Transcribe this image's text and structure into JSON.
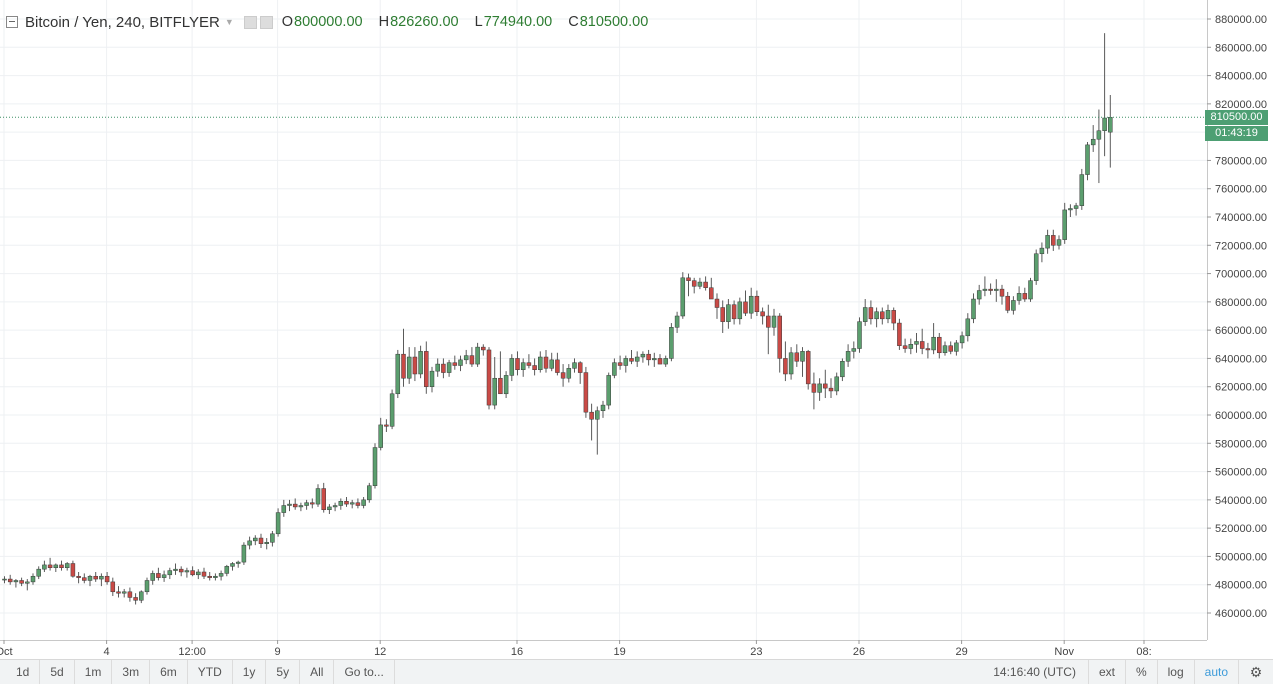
{
  "legend": {
    "symbol": "Bitcoin / Yen, 240, BITFLYER",
    "open_label": "O",
    "open": "800000.00",
    "high_label": "H",
    "high": "826260.00",
    "low_label": "L",
    "low": "774940.00",
    "close_label": "C",
    "close": "810500.00"
  },
  "last_price_tag": "810500.00",
  "countdown_tag": "01:43:19",
  "colors": {
    "up": "#5b9e6e",
    "down": "#c94a46",
    "wick": "#5a5a5a",
    "grid": "#eef0f3",
    "last_line": "#3f8f66"
  },
  "toolbar": {
    "ranges": [
      "1d",
      "5d",
      "1m",
      "3m",
      "6m",
      "YTD",
      "1y",
      "5y",
      "All"
    ],
    "goto": "Go to...",
    "clock": "14:16:40 (UTC)",
    "ext": "ext",
    "percent": "%",
    "log": "log",
    "auto": "auto"
  },
  "chart_data": {
    "type": "candlestick",
    "title": "Bitcoin / Yen, 240, BITFLYER",
    "y_axis_ticks": [
      460000,
      480000,
      500000,
      520000,
      540000,
      560000,
      580000,
      600000,
      620000,
      640000,
      660000,
      680000,
      700000,
      720000,
      740000,
      760000,
      780000,
      800000,
      820000,
      840000,
      860000,
      880000
    ],
    "y_tick_labels": [
      "460000.00",
      "480000.00",
      "500000.00",
      "520000.00",
      "540000.00",
      "560000.00",
      "580000.00",
      "600000.00",
      "620000.00",
      "640000.00",
      "660000.00",
      "680000.00",
      "700000.00",
      "720000.00",
      "740000.00",
      "760000.00",
      "780000.00",
      "800000.00",
      "820000.00",
      "840000.00",
      "860000.00",
      "880000.00"
    ],
    "ylim": [
      446000,
      893000
    ],
    "x_tick_labels": [
      {
        "label": "Oct",
        "bar": 0
      },
      {
        "label": "4",
        "bar": 18
      },
      {
        "label": "12:00",
        "bar": 33
      },
      {
        "label": "9",
        "bar": 48
      },
      {
        "label": "12",
        "bar": 66
      },
      {
        "label": "16",
        "bar": 90
      },
      {
        "label": "19",
        "bar": 108
      },
      {
        "label": "23",
        "bar": 132
      },
      {
        "label": "26",
        "bar": 150
      },
      {
        "label": "29",
        "bar": 168
      },
      {
        "label": "Nov",
        "bar": 186
      },
      {
        "label": "08:",
        "bar": 200
      }
    ],
    "candles_ohlc": [
      [
        484000,
        486000,
        481000,
        484000
      ],
      [
        484000,
        487000,
        480000,
        482000
      ],
      [
        482000,
        484000,
        478000,
        483000
      ],
      [
        483000,
        485000,
        479000,
        481000
      ],
      [
        481000,
        484000,
        476000,
        482000
      ],
      [
        482000,
        488000,
        480000,
        486000
      ],
      [
        486000,
        493000,
        484000,
        491000
      ],
      [
        491000,
        497000,
        489000,
        494000
      ],
      [
        494000,
        499000,
        490000,
        492000
      ],
      [
        492000,
        495000,
        489000,
        494000
      ],
      [
        494000,
        497000,
        490000,
        492000
      ],
      [
        492000,
        496000,
        490000,
        495000
      ],
      [
        495000,
        497000,
        485000,
        486000
      ],
      [
        486000,
        489000,
        481000,
        485000
      ],
      [
        485000,
        488000,
        481000,
        483000
      ],
      [
        483000,
        487000,
        479000,
        486000
      ],
      [
        486000,
        489000,
        482000,
        484000
      ],
      [
        484000,
        488000,
        479000,
        486000
      ],
      [
        486000,
        489000,
        480000,
        482000
      ],
      [
        482000,
        485000,
        472000,
        475000
      ],
      [
        475000,
        479000,
        471000,
        474000
      ],
      [
        474000,
        477000,
        471000,
        475000
      ],
      [
        475000,
        478000,
        468000,
        471000
      ],
      [
        471000,
        474000,
        466000,
        469000
      ],
      [
        469000,
        476000,
        467000,
        475000
      ],
      [
        475000,
        485000,
        473000,
        483000
      ],
      [
        483000,
        490000,
        480000,
        488000
      ],
      [
        488000,
        492000,
        483000,
        485000
      ],
      [
        485000,
        490000,
        482000,
        487000
      ],
      [
        487000,
        492000,
        484000,
        490000
      ],
      [
        490000,
        495000,
        487000,
        491000
      ],
      [
        491000,
        493000,
        486000,
        489000
      ],
      [
        489000,
        492000,
        485000,
        490000
      ],
      [
        490000,
        493000,
        486000,
        487000
      ],
      [
        487000,
        491000,
        484000,
        489000
      ],
      [
        489000,
        492000,
        484000,
        486000
      ],
      [
        486000,
        489000,
        483000,
        485000
      ],
      [
        485000,
        488000,
        483000,
        486000
      ],
      [
        486000,
        490000,
        483000,
        488000
      ],
      [
        488000,
        494000,
        486000,
        493000
      ],
      [
        493000,
        496000,
        490000,
        495000
      ],
      [
        495000,
        497000,
        492000,
        496000
      ],
      [
        496000,
        510000,
        494000,
        508000
      ],
      [
        508000,
        514000,
        505000,
        511000
      ],
      [
        511000,
        515000,
        508000,
        513000
      ],
      [
        513000,
        516000,
        506000,
        509000
      ],
      [
        509000,
        513000,
        505000,
        510000
      ],
      [
        510000,
        518000,
        507000,
        516000
      ],
      [
        516000,
        534000,
        514000,
        531000
      ],
      [
        531000,
        540000,
        528000,
        536000
      ],
      [
        536000,
        540000,
        532000,
        537000
      ],
      [
        537000,
        541000,
        533000,
        535000
      ],
      [
        535000,
        538000,
        532000,
        536000
      ],
      [
        536000,
        540000,
        533000,
        538000
      ],
      [
        538000,
        541000,
        534000,
        537000
      ],
      [
        537000,
        551000,
        535000,
        548000
      ],
      [
        548000,
        552000,
        531000,
        533000
      ],
      [
        533000,
        537000,
        530000,
        535000
      ],
      [
        535000,
        538000,
        532000,
        536000
      ],
      [
        536000,
        541000,
        533000,
        539000
      ],
      [
        539000,
        542000,
        535000,
        537000
      ],
      [
        537000,
        540000,
        534000,
        538000
      ],
      [
        538000,
        541000,
        534000,
        536000
      ],
      [
        536000,
        542000,
        534000,
        540000
      ],
      [
        540000,
        552000,
        538000,
        550000
      ],
      [
        550000,
        580000,
        548000,
        577000
      ],
      [
        577000,
        598000,
        575000,
        593000
      ],
      [
        593000,
        597000,
        588000,
        592000
      ],
      [
        592000,
        618000,
        590000,
        615000
      ],
      [
        615000,
        646000,
        612000,
        643000
      ],
      [
        643000,
        661000,
        620000,
        626000
      ],
      [
        626000,
        648000,
        622000,
        641000
      ],
      [
        641000,
        648000,
        624000,
        629000
      ],
      [
        629000,
        649000,
        626000,
        645000
      ],
      [
        645000,
        652000,
        615000,
        620000
      ],
      [
        620000,
        634000,
        616000,
        631000
      ],
      [
        631000,
        640000,
        627000,
        636000
      ],
      [
        636000,
        640000,
        626000,
        630000
      ],
      [
        630000,
        639000,
        627000,
        637000
      ],
      [
        637000,
        642000,
        632000,
        635000
      ],
      [
        635000,
        642000,
        631000,
        639000
      ],
      [
        639000,
        646000,
        636000,
        642000
      ],
      [
        642000,
        648000,
        634000,
        636000
      ],
      [
        636000,
        651000,
        634000,
        648000
      ],
      [
        648000,
        650000,
        642000,
        646000
      ],
      [
        646000,
        648000,
        604000,
        607000
      ],
      [
        607000,
        641000,
        604000,
        626000
      ],
      [
        626000,
        645000,
        618000,
        615000
      ],
      [
        615000,
        631000,
        612000,
        628000
      ],
      [
        628000,
        643000,
        624000,
        640000
      ],
      [
        640000,
        645000,
        628000,
        632000
      ],
      [
        632000,
        640000,
        627000,
        637000
      ],
      [
        637000,
        643000,
        633000,
        635000
      ],
      [
        635000,
        640000,
        628000,
        632000
      ],
      [
        632000,
        645000,
        630000,
        641000
      ],
      [
        641000,
        646000,
        630000,
        633000
      ],
      [
        633000,
        644000,
        631000,
        639000
      ],
      [
        639000,
        644000,
        628000,
        630000
      ],
      [
        630000,
        636000,
        620000,
        626000
      ],
      [
        626000,
        636000,
        623000,
        633000
      ],
      [
        633000,
        640000,
        630000,
        637000
      ],
      [
        637000,
        638000,
        622000,
        630000
      ],
      [
        630000,
        634000,
        598000,
        602000
      ],
      [
        602000,
        608000,
        582000,
        597000
      ],
      [
        597000,
        606000,
        572000,
        603000
      ],
      [
        603000,
        610000,
        598000,
        607000
      ],
      [
        607000,
        630000,
        604000,
        628000
      ],
      [
        628000,
        640000,
        626000,
        637000
      ],
      [
        637000,
        642000,
        632000,
        635000
      ],
      [
        635000,
        642000,
        630000,
        640000
      ],
      [
        640000,
        646000,
        636000,
        638000
      ],
      [
        638000,
        645000,
        634000,
        641000
      ],
      [
        641000,
        645000,
        637000,
        643000
      ],
      [
        643000,
        646000,
        635000,
        639000
      ],
      [
        639000,
        644000,
        634000,
        640000
      ],
      [
        640000,
        643000,
        636000,
        636000
      ],
      [
        636000,
        642000,
        634000,
        640000
      ],
      [
        640000,
        665000,
        638000,
        662000
      ],
      [
        662000,
        673000,
        658000,
        670000
      ],
      [
        670000,
        701000,
        668000,
        697000
      ],
      [
        697000,
        700000,
        684000,
        695000
      ],
      [
        695000,
        697000,
        686000,
        691000
      ],
      [
        691000,
        697000,
        689000,
        694000
      ],
      [
        694000,
        698000,
        688000,
        690000
      ],
      [
        690000,
        697000,
        684000,
        682000
      ],
      [
        682000,
        686000,
        668000,
        676000
      ],
      [
        676000,
        681000,
        658000,
        666000
      ],
      [
        666000,
        682000,
        661000,
        678000
      ],
      [
        678000,
        681000,
        664000,
        668000
      ],
      [
        668000,
        683000,
        664000,
        680000
      ],
      [
        680000,
        688000,
        670000,
        672000
      ],
      [
        672000,
        690000,
        668000,
        684000
      ],
      [
        684000,
        688000,
        670000,
        673000
      ],
      [
        673000,
        676000,
        664000,
        670000
      ],
      [
        670000,
        678000,
        643000,
        662000
      ],
      [
        662000,
        675000,
        656000,
        670000
      ],
      [
        670000,
        672000,
        630000,
        640000
      ],
      [
        640000,
        652000,
        624000,
        629000
      ],
      [
        629000,
        648000,
        625000,
        644000
      ],
      [
        644000,
        650000,
        634000,
        638000
      ],
      [
        638000,
        648000,
        627000,
        645000
      ],
      [
        645000,
        646000,
        618000,
        622000
      ],
      [
        622000,
        630000,
        604000,
        616000
      ],
      [
        616000,
        626000,
        610000,
        622000
      ],
      [
        622000,
        632000,
        612000,
        619000
      ],
      [
        619000,
        626000,
        612000,
        617000
      ],
      [
        617000,
        630000,
        614000,
        627000
      ],
      [
        627000,
        640000,
        624000,
        638000
      ],
      [
        638000,
        650000,
        634000,
        645000
      ],
      [
        645000,
        652000,
        640000,
        647000
      ],
      [
        647000,
        669000,
        644000,
        666000
      ],
      [
        666000,
        682000,
        663000,
        676000
      ],
      [
        676000,
        681000,
        664000,
        668000
      ],
      [
        668000,
        676000,
        662000,
        673000
      ],
      [
        673000,
        676000,
        664000,
        668000
      ],
      [
        668000,
        678000,
        665000,
        674000
      ],
      [
        674000,
        676000,
        660000,
        665000
      ],
      [
        665000,
        668000,
        646000,
        649000
      ],
      [
        649000,
        654000,
        644000,
        647000
      ],
      [
        647000,
        654000,
        643000,
        650000
      ],
      [
        650000,
        658000,
        644000,
        652000
      ],
      [
        652000,
        661000,
        643000,
        647000
      ],
      [
        647000,
        651000,
        640000,
        646000
      ],
      [
        646000,
        665000,
        643000,
        655000
      ],
      [
        655000,
        658000,
        640000,
        644000
      ],
      [
        644000,
        652000,
        642000,
        649000
      ],
      [
        649000,
        652000,
        643000,
        645000
      ],
      [
        645000,
        653000,
        642000,
        651000
      ],
      [
        651000,
        659000,
        647000,
        656000
      ],
      [
        656000,
        672000,
        652000,
        668000
      ],
      [
        668000,
        686000,
        665000,
        682000
      ],
      [
        682000,
        692000,
        678000,
        688000
      ],
      [
        688000,
        698000,
        684000,
        689000
      ],
      [
        689000,
        693000,
        685000,
        688000
      ],
      [
        688000,
        696000,
        680000,
        689000
      ],
      [
        689000,
        692000,
        678000,
        684000
      ],
      [
        684000,
        687000,
        672000,
        674000
      ],
      [
        674000,
        684000,
        671000,
        681000
      ],
      [
        681000,
        691000,
        678000,
        686000
      ],
      [
        686000,
        690000,
        680000,
        682000
      ],
      [
        682000,
        697000,
        680000,
        695000
      ],
      [
        695000,
        717000,
        692000,
        714000
      ],
      [
        714000,
        722000,
        708000,
        718000
      ],
      [
        718000,
        731000,
        714000,
        727000
      ],
      [
        727000,
        731000,
        716000,
        720000
      ],
      [
        720000,
        727000,
        717000,
        724000
      ],
      [
        724000,
        750000,
        721000,
        745000
      ],
      [
        745000,
        749000,
        740000,
        746000
      ],
      [
        746000,
        750000,
        741000,
        748000
      ],
      [
        748000,
        774000,
        745000,
        770000
      ],
      [
        770000,
        793000,
        766000,
        791000
      ],
      [
        791000,
        805000,
        786000,
        795000
      ],
      [
        795000,
        816000,
        764000,
        801000
      ],
      [
        801000,
        870000,
        783000,
        810000
      ],
      [
        800000,
        826260,
        774940,
        810500
      ]
    ],
    "last_close": 810500
  }
}
